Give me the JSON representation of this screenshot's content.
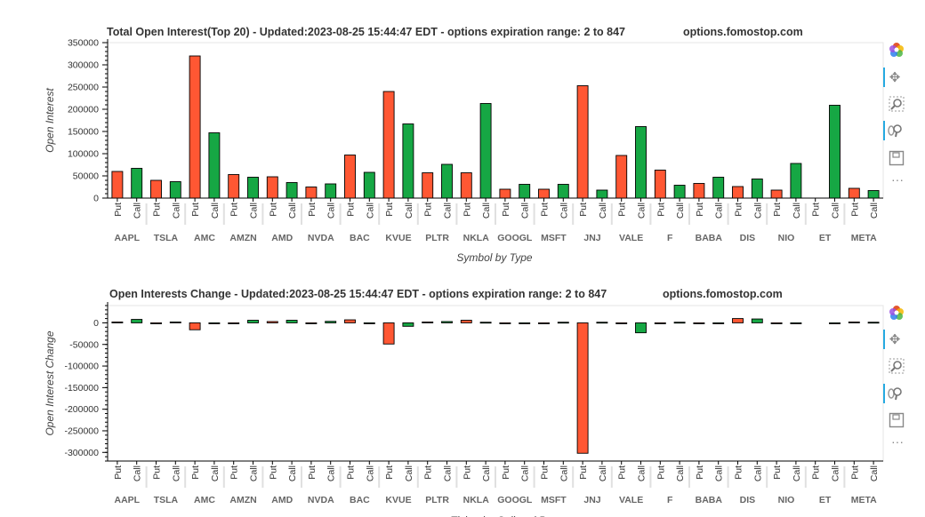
{
  "toolbar": {
    "icons": [
      "bokeh-logo-icon",
      "pan-icon",
      "box-zoom-icon",
      "wheel-zoom-icon",
      "save-icon",
      "more-icon"
    ],
    "more": "···"
  },
  "chart_data": [
    {
      "type": "bar",
      "title": "Total Open Interest(Top 20) - Updated:2023-08-25 15:44:47 EDT - options expiration range: 2 to 847",
      "subtitle": "options.fomostop.com",
      "ylabel": "Open Interest",
      "xlabel": "Symbol by Type",
      "ylim": [
        0,
        350000
      ],
      "yticks": [
        0,
        50000,
        100000,
        150000,
        200000,
        250000,
        300000,
        350000
      ],
      "ytick_labels": [
        "0",
        "50000",
        "100000",
        "150000",
        "200000",
        "250000",
        "300000",
        "350000"
      ],
      "categories": [
        "AAPL",
        "TSLA",
        "AMC",
        "AMZN",
        "AMD",
        "NVDA",
        "BAC",
        "KVUE",
        "PLTR",
        "NKLA",
        "GOOGL",
        "MSFT",
        "JNJ",
        "VALE",
        "F",
        "BABA",
        "DIS",
        "NIO",
        "ET",
        "META"
      ],
      "types": [
        "Put",
        "Call"
      ],
      "colors": {
        "Put": "#ff5733",
        "Call": "#16a744"
      },
      "series": [
        {
          "name": "Put",
          "values": [
            60000,
            40000,
            320000,
            53000,
            48000,
            25000,
            97000,
            240000,
            57000,
            57000,
            20000,
            20000,
            253000,
            96000,
            63000,
            33000,
            26000,
            18000,
            0,
            22000
          ]
        },
        {
          "name": "Call",
          "values": [
            67000,
            37000,
            147000,
            47000,
            35000,
            32000,
            58000,
            167000,
            76000,
            213000,
            31000,
            31000,
            18000,
            161000,
            29000,
            47000,
            43000,
            78000,
            209000,
            17000
          ]
        }
      ]
    },
    {
      "type": "bar",
      "title": "Open Interests Change - Updated:2023-08-25 15:44:47 EDT - options expiration range: 2 to 847",
      "subtitle": "options.fomostop.com",
      "ylabel": "Open Interest Change",
      "xlabel": "Ticker by Call and Put",
      "ylim": [
        -320000,
        40000
      ],
      "yticks": [
        0,
        -50000,
        -100000,
        -150000,
        -200000,
        -250000,
        -300000
      ],
      "ytick_labels": [
        "0",
        "-50000",
        "-100000",
        "-150000",
        "-200000",
        "-250000",
        "-300000"
      ],
      "categories": [
        "AAPL",
        "TSLA",
        "AMC",
        "AMZN",
        "AMD",
        "NVDA",
        "BAC",
        "KVUE",
        "PLTR",
        "NKLA",
        "GOOGL",
        "MSFT",
        "JNJ",
        "VALE",
        "F",
        "BABA",
        "DIS",
        "NIO",
        "ET",
        "META"
      ],
      "types": [
        "Put",
        "Call"
      ],
      "colors": {
        "Put": "#ff5733",
        "Call": "#16a744"
      },
      "series": [
        {
          "name": "Put",
          "values": [
            2000,
            -1500,
            -16000,
            -1500,
            3000,
            -1500,
            7000,
            -49000,
            2000,
            6000,
            -1000,
            -1500,
            -302000,
            -1500,
            -1500,
            -1000,
            10000,
            -1000,
            0,
            2000
          ]
        },
        {
          "name": "Call",
          "values": [
            8000,
            2000,
            -1000,
            6000,
            6000,
            3500,
            -1500,
            -8000,
            3000,
            1500,
            -2000,
            1500,
            1500,
            -23000,
            1500,
            -1000,
            9000,
            -1500,
            -1000,
            1500
          ]
        }
      ]
    }
  ]
}
